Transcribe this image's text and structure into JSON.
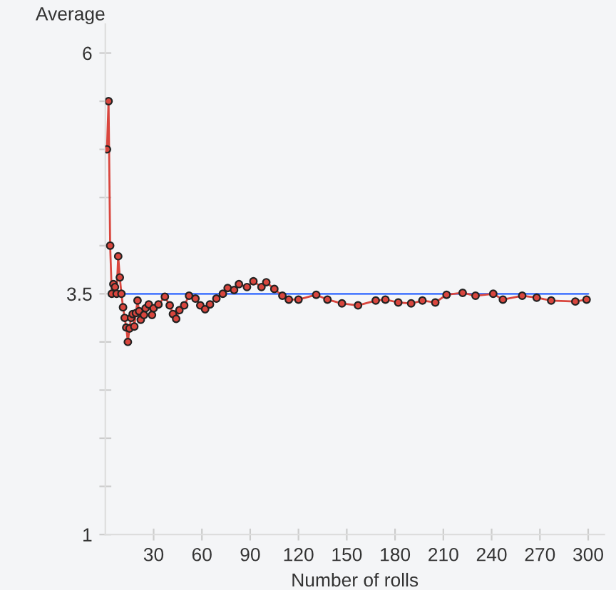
{
  "chart_data": {
    "type": "line",
    "xlabel": "Number of rolls",
    "ylabel": "Average",
    "xlim": [
      0,
      310
    ],
    "xticks": [
      30,
      60,
      90,
      120,
      150,
      180,
      210,
      240,
      270,
      300
    ],
    "ylim": [
      1,
      6.3
    ],
    "yticks": [
      1,
      {
        "value": 1.5,
        "label": null
      },
      {
        "value": 2,
        "label": null
      },
      {
        "value": 2.5,
        "label": null
      },
      {
        "value": 3,
        "label": null
      },
      3.5,
      {
        "value": 4,
        "label": null
      },
      {
        "value": 4.5,
        "label": null
      },
      {
        "value": 5,
        "label": null
      },
      {
        "value": 5.5,
        "label": null
      },
      6
    ],
    "grid": false,
    "legend": false,
    "series": [
      {
        "color": "#d9463e",
        "marker": "circle",
        "x": [
          1,
          2,
          3,
          4,
          5,
          6,
          7,
          8,
          9,
          10,
          11,
          12,
          13,
          14,
          15,
          16,
          17,
          18,
          19,
          20,
          21,
          22,
          24,
          25,
          27,
          29,
          30,
          33,
          37,
          40,
          42,
          44,
          46,
          49,
          52,
          56,
          59,
          62,
          65,
          69,
          73,
          76,
          80,
          83,
          88,
          92,
          97,
          100,
          105,
          110,
          114,
          120,
          131,
          138,
          147,
          157,
          168,
          174,
          182,
          190,
          197,
          205,
          212,
          222,
          230,
          241,
          247,
          259,
          268,
          277,
          292,
          299
        ],
        "values": [
          5,
          5.5,
          4,
          3.5,
          3.6,
          3.57,
          3.5,
          3.89,
          3.67,
          3.5,
          3.36,
          3.25,
          3.15,
          3,
          3.14,
          3.25,
          3.29,
          3.16,
          3.3,
          3.43,
          3.32,
          3.23,
          3.28,
          3.35,
          3.39,
          3.28,
          3.35,
          3.39,
          3.47,
          3.38,
          3.29,
          3.24,
          3.33,
          3.38,
          3.48,
          3.45,
          3.38,
          3.34,
          3.39,
          3.45,
          3.5,
          3.56,
          3.54,
          3.6,
          3.57,
          3.63,
          3.57,
          3.62,
          3.55,
          3.48,
          3.44,
          3.44,
          3.49,
          3.44,
          3.4,
          3.38,
          3.43,
          3.44,
          3.41,
          3.4,
          3.43,
          3.41,
          3.49,
          3.51,
          3.48,
          3.5,
          3.44,
          3.48,
          3.46,
          3.43,
          3.42,
          3.44
        ]
      },
      {
        "type": "line",
        "color": "#4d7cff",
        "marker": "none",
        "x": [
          11,
          300
        ],
        "values": [
          3.5,
          3.5
        ]
      }
    ]
  }
}
